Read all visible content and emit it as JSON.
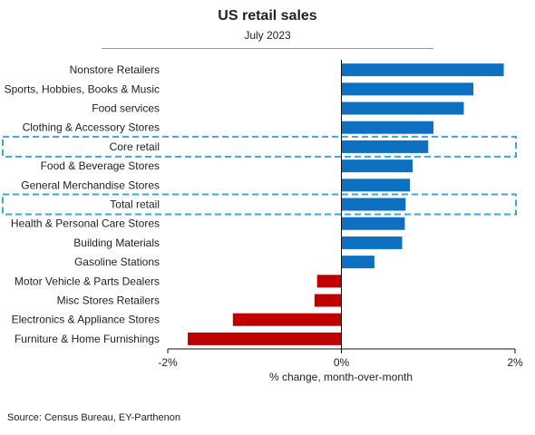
{
  "chart_data": {
    "type": "bar",
    "orientation": "horizontal",
    "title": "US retail sales",
    "subtitle": "July 2023",
    "xlabel": "% change, month-over-month",
    "ylabel": "",
    "xlim": [
      -2,
      2
    ],
    "xticks": [
      -2,
      0,
      2
    ],
    "xtick_labels": [
      "-2%",
      "0%",
      "2%"
    ],
    "grid": false,
    "legend": "none",
    "categories": [
      "Nonstore Retailers",
      "Sports, Hobbies, Books & Music",
      "Food services",
      "Clothing & Accessory Stores",
      "Core retail",
      "Food & Beverage Stores",
      "General Merchandise Stores",
      "Total retail",
      "Health & Personal Care Stores",
      "Building Materials",
      "Gasoline Stations",
      "Motor Vehicle & Parts Dealers",
      "Misc Stores Retailers",
      "Electronics & Appliance Stores",
      "Furniture & Home Furnishings"
    ],
    "values": [
      1.87,
      1.52,
      1.41,
      1.06,
      1.0,
      0.82,
      0.79,
      0.74,
      0.73,
      0.7,
      0.38,
      -0.28,
      -0.31,
      -1.25,
      -1.77
    ],
    "highlighted": [
      "Core retail",
      "Total retail"
    ],
    "colors": {
      "positive": "#0E70C0",
      "negative": "#C00000",
      "highlight_box": "#3BA7D9"
    }
  },
  "source": "Source: Census Bureau, EY-Parthenon"
}
